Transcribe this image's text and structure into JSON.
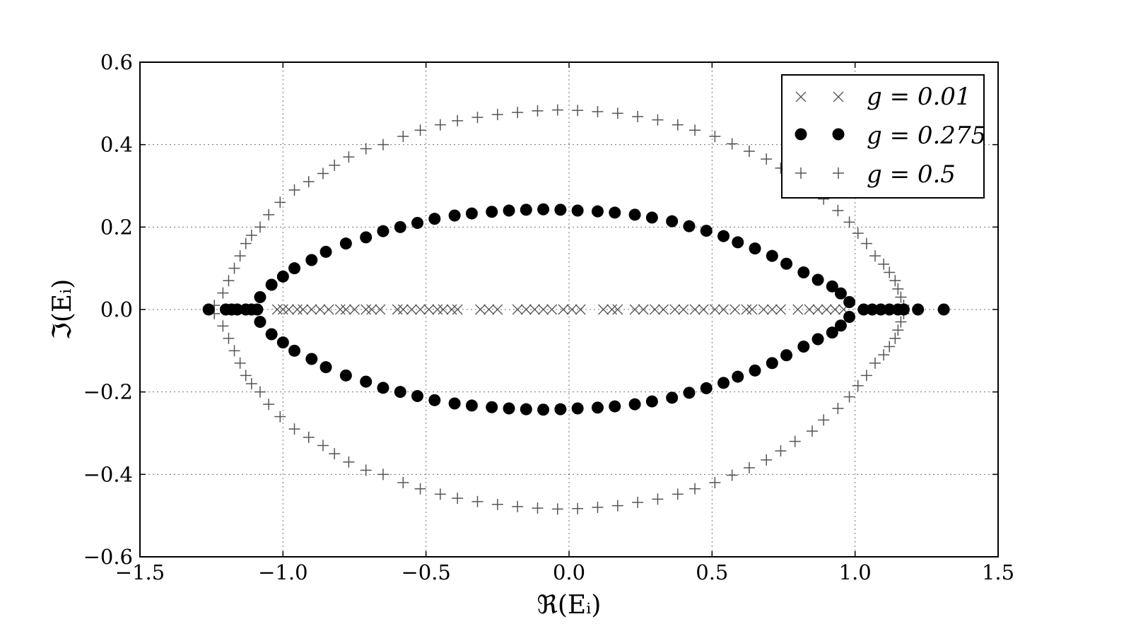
{
  "chart_data": {
    "type": "scatter",
    "title": "",
    "xlabel": "ℜ(Eᵢ)",
    "ylabel": "ℑ(Eᵢ)",
    "xlim": [
      -1.5,
      1.5
    ],
    "ylim": [
      -0.6,
      0.6
    ],
    "xticks": [
      -1.5,
      -1.0,
      -0.5,
      0.0,
      0.5,
      1.0,
      1.5
    ],
    "yticks": [
      -0.6,
      -0.4,
      -0.2,
      0.0,
      0.2,
      0.4,
      0.6
    ],
    "xtick_labels": [
      "−1.5",
      "−1.0",
      "−0.5",
      "0.0",
      "0.5",
      "1.0",
      "1.5"
    ],
    "ytick_labels": [
      "−0.6",
      "−0.4",
      "−0.2",
      "0.0",
      "0.2",
      "0.4",
      "0.6"
    ],
    "grid": true,
    "legend_position": "top-right",
    "legend": [
      "g = 0.01",
      "g = 0.275",
      "g = 0.5"
    ],
    "series": [
      {
        "name": "g = 0.01",
        "marker": "x",
        "color": "#555555",
        "x": [
          -1.02,
          -1.0,
          -0.98,
          -0.95,
          -0.93,
          -0.9,
          -0.87,
          -0.84,
          -0.8,
          -0.78,
          -0.75,
          -0.71,
          -0.69,
          -0.66,
          -0.6,
          -0.58,
          -0.55,
          -0.52,
          -0.49,
          -0.46,
          -0.44,
          -0.41,
          -0.39,
          -0.31,
          -0.28,
          -0.25,
          -0.18,
          -0.15,
          -0.12,
          -0.09,
          -0.06,
          -0.02,
          0.01,
          0.04,
          0.12,
          0.15,
          0.17,
          0.23,
          0.26,
          0.3,
          0.33,
          0.37,
          0.4,
          0.44,
          0.47,
          0.51,
          0.54,
          0.58,
          0.62,
          0.64,
          0.68,
          0.71,
          0.74,
          0.8,
          0.84,
          0.87,
          0.9,
          0.93,
          0.96
        ],
        "y": [
          0,
          0,
          0,
          0,
          0,
          0,
          0,
          0,
          0,
          0,
          0,
          0,
          0,
          0,
          0,
          0,
          0,
          0,
          0,
          0,
          0,
          0,
          0,
          0,
          0,
          0,
          0,
          0,
          0,
          0,
          0,
          0,
          0,
          0,
          0,
          0,
          0,
          0,
          0,
          0,
          0,
          0,
          0,
          0,
          0,
          0,
          0,
          0,
          0,
          0,
          0,
          0,
          0,
          0,
          0,
          0,
          0,
          0,
          0
        ]
      },
      {
        "name": "g = 0.275",
        "marker": "o",
        "color": "#000000",
        "x": [
          -1.26,
          -1.2,
          -1.18,
          -1.16,
          -1.13,
          -1.11,
          -1.09,
          -1.08,
          -1.04,
          -1.0,
          -0.96,
          -0.9,
          -0.85,
          -0.78,
          -0.71,
          -0.65,
          -0.59,
          -0.53,
          -0.47,
          -0.4,
          -0.34,
          -0.27,
          -0.21,
          -0.15,
          -0.09,
          -0.03,
          0.03,
          0.1,
          0.16,
          0.23,
          0.29,
          0.36,
          0.42,
          0.48,
          0.54,
          0.59,
          0.65,
          0.71,
          0.76,
          0.82,
          0.87,
          0.92,
          0.95,
          0.98,
          1.03,
          1.06,
          1.09,
          1.12,
          1.15,
          1.17,
          1.22,
          1.31
        ],
        "y_abs": [
          0,
          0,
          0,
          0,
          0,
          0,
          0,
          0.03,
          0.06,
          0.08,
          0.1,
          0.12,
          0.14,
          0.16,
          0.175,
          0.19,
          0.2,
          0.21,
          0.22,
          0.228,
          0.233,
          0.237,
          0.24,
          0.242,
          0.243,
          0.242,
          0.24,
          0.238,
          0.235,
          0.23,
          0.223,
          0.214,
          0.202,
          0.191,
          0.178,
          0.163,
          0.148,
          0.13,
          0.111,
          0.09,
          0.072,
          0.056,
          0.039,
          0.018,
          0,
          0,
          0,
          0,
          0,
          0,
          0,
          0
        ],
        "symmetric_about_zero": true
      },
      {
        "name": "g = 0.5",
        "marker": "+",
        "color": "#555555",
        "x": [
          -1.24,
          -1.21,
          -1.19,
          -1.17,
          -1.15,
          -1.13,
          -1.11,
          -1.08,
          -1.05,
          -1.01,
          -0.96,
          -0.91,
          -0.86,
          -0.82,
          -0.77,
          -0.71,
          -0.65,
          -0.58,
          -0.52,
          -0.45,
          -0.39,
          -0.32,
          -0.25,
          -0.18,
          -0.11,
          -0.04,
          0.03,
          0.1,
          0.17,
          0.24,
          0.31,
          0.38,
          0.44,
          0.51,
          0.57,
          0.63,
          0.69,
          0.74,
          0.79,
          0.85,
          0.89,
          0.94,
          0.98,
          1.01,
          1.04,
          1.07,
          1.1,
          1.12,
          1.14,
          1.15,
          1.16,
          1.17
        ],
        "y_abs": [
          0.01,
          0.04,
          0.07,
          0.1,
          0.13,
          0.16,
          0.18,
          0.2,
          0.23,
          0.26,
          0.29,
          0.31,
          0.33,
          0.35,
          0.37,
          0.39,
          0.4,
          0.42,
          0.435,
          0.448,
          0.458,
          0.466,
          0.473,
          0.478,
          0.482,
          0.484,
          0.483,
          0.48,
          0.476,
          0.468,
          0.46,
          0.448,
          0.435,
          0.42,
          0.402,
          0.384,
          0.365,
          0.343,
          0.32,
          0.295,
          0.268,
          0.24,
          0.212,
          0.185,
          0.16,
          0.13,
          0.11,
          0.09,
          0.07,
          0.05,
          0.03,
          0.01
        ],
        "symmetric_about_zero": true
      }
    ]
  }
}
